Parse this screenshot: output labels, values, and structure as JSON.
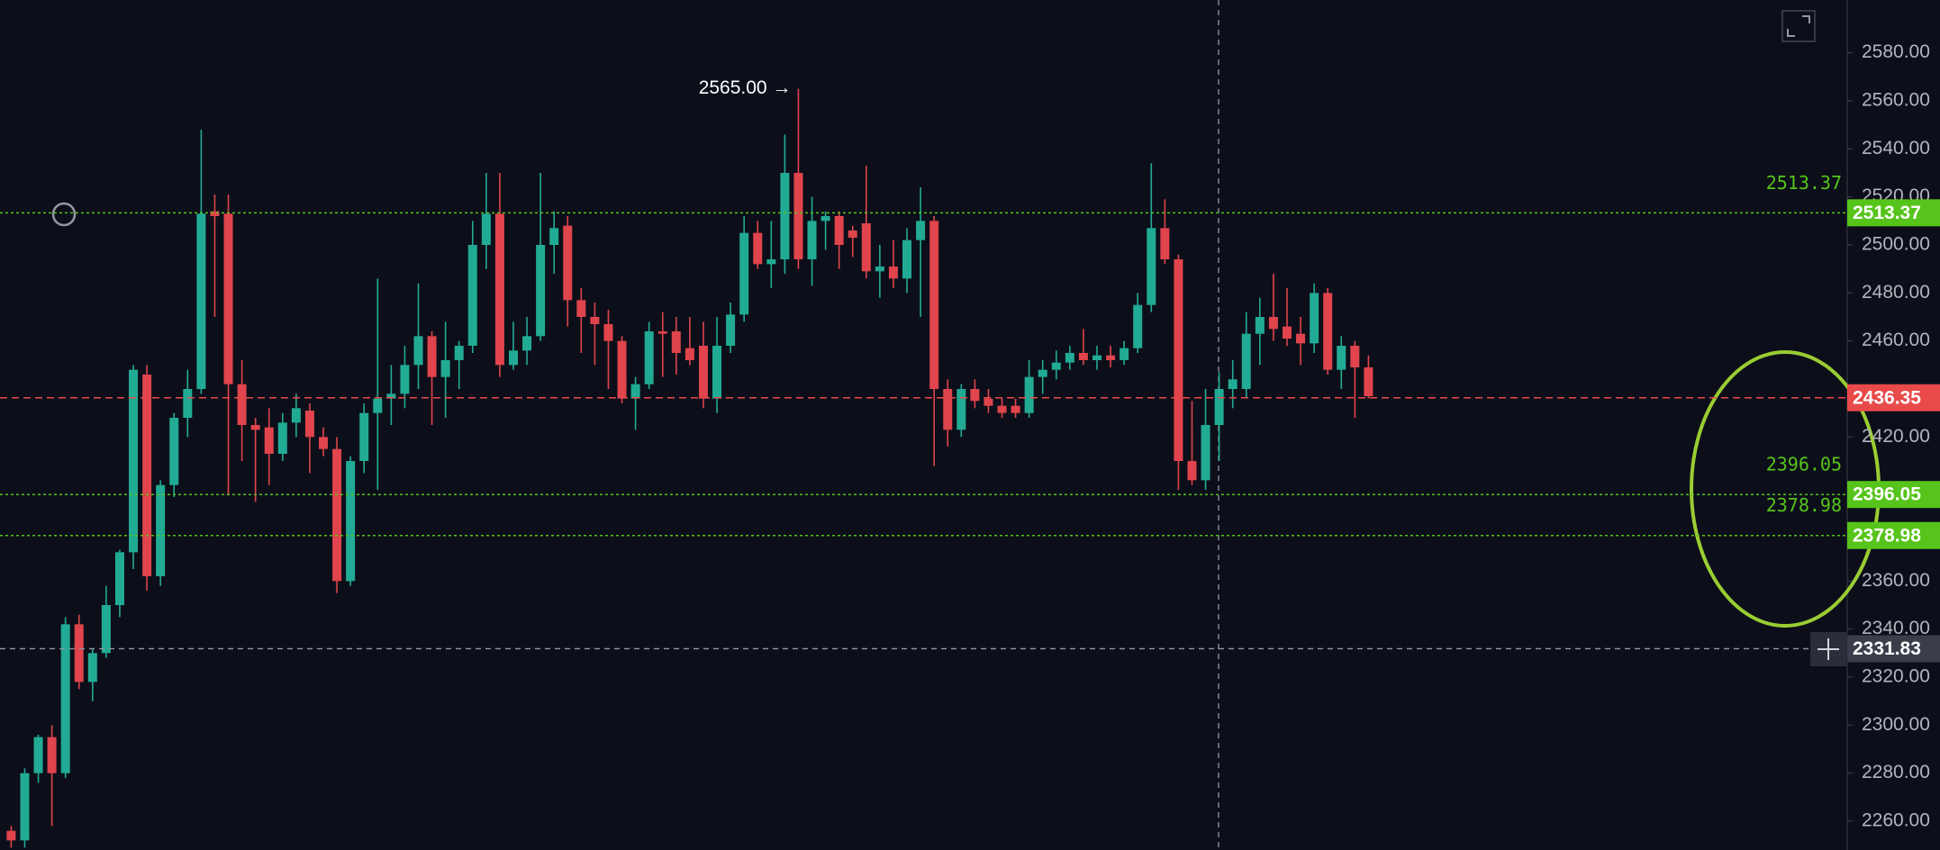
{
  "chart_data": {
    "type": "candlestick",
    "colors": {
      "up": "#22ab94",
      "down": "#e0444c"
    },
    "open": [
      2256,
      2252,
      2280,
      2295,
      2280,
      2342,
      2318,
      2330,
      2350,
      2372,
      2446,
      2362,
      2400,
      2428,
      2440,
      2514,
      2513,
      2442,
      2425,
      2424,
      2413,
      2426,
      2431,
      2420,
      2415,
      2360,
      2410,
      2430,
      2436,
      2438,
      2450,
      2462,
      2445,
      2452,
      2458,
      2500,
      2513,
      2450,
      2456,
      2462,
      2500,
      2508,
      2477,
      2470,
      2467,
      2460,
      2436,
      2442,
      2464,
      2464,
      2457,
      2458,
      2436,
      2458,
      2471,
      2505,
      2492,
      2494,
      2530,
      2494,
      2510,
      2512,
      2506,
      2509,
      2489,
      2491,
      2486,
      2502,
      2510,
      2440,
      2423,
      2440,
      2436,
      2433,
      2433,
      2430,
      2445,
      2448,
      2451,
      2455,
      2452,
      2454,
      2452,
      2457,
      2475,
      2507,
      2494,
      2410,
      2402,
      2425,
      2440,
      2440,
      2463,
      2470,
      2466,
      2463,
      2459,
      2480,
      2448,
      2458,
      2449
    ],
    "high": [
      2258,
      2282,
      2296,
      2300,
      2345,
      2346,
      2332,
      2358,
      2373,
      2450,
      2450,
      2402,
      2430,
      2448,
      2548,
      2521,
      2521,
      2452,
      2428,
      2432,
      2430,
      2438,
      2434,
      2424,
      2420,
      2412,
      2434,
      2486,
      2450,
      2458,
      2484,
      2464,
      2468,
      2460,
      2510,
      2530,
      2530,
      2468,
      2470,
      2530,
      2514,
      2512,
      2482,
      2476,
      2473,
      2462,
      2445,
      2468,
      2472,
      2470,
      2470,
      2468,
      2470,
      2476,
      2512,
      2510,
      2510,
      2546,
      2565,
      2520,
      2514,
      2514,
      2508,
      2533,
      2500,
      2502,
      2507,
      2524,
      2512,
      2444,
      2442,
      2444,
      2440,
      2436,
      2436,
      2452,
      2452,
      2456,
      2458,
      2465,
      2458,
      2458,
      2460,
      2480,
      2534,
      2519,
      2496,
      2435,
      2440,
      2447,
      2452,
      2472,
      2478,
      2488,
      2482,
      2470,
      2484,
      2482,
      2462,
      2460,
      2454
    ],
    "low": [
      2249,
      2249,
      2276,
      2258,
      2278,
      2315,
      2310,
      2328,
      2345,
      2365,
      2356,
      2358,
      2395,
      2420,
      2438,
      2470,
      2396,
      2410,
      2393,
      2400,
      2410,
      2420,
      2405,
      2412,
      2355,
      2358,
      2405,
      2398,
      2425,
      2432,
      2440,
      2425,
      2428,
      2440,
      2455,
      2490,
      2445,
      2448,
      2450,
      2460,
      2488,
      2466,
      2455,
      2450,
      2440,
      2434,
      2423,
      2440,
      2445,
      2446,
      2450,
      2432,
      2430,
      2455,
      2468,
      2490,
      2482,
      2488,
      2490,
      2483,
      2498,
      2490,
      2495,
      2486,
      2478,
      2482,
      2480,
      2470,
      2408,
      2416,
      2420,
      2432,
      2430,
      2428,
      2428,
      2428,
      2438,
      2444,
      2448,
      2450,
      2448,
      2449,
      2450,
      2455,
      2472,
      2492,
      2398,
      2400,
      2398,
      2410,
      2432,
      2436,
      2450,
      2460,
      2458,
      2450,
      2455,
      2446,
      2440,
      2428,
      2436
    ],
    "close": [
      2252,
      2280,
      2295,
      2280,
      2342,
      2318,
      2330,
      2350,
      2372,
      2448,
      2362,
      2400,
      2428,
      2440,
      2513,
      2512,
      2442,
      2425,
      2423,
      2413,
      2426,
      2432,
      2420,
      2415,
      2360,
      2410,
      2430,
      2436,
      2438,
      2450,
      2462,
      2445,
      2452,
      2458,
      2500,
      2513,
      2450,
      2456,
      2462,
      2500,
      2507,
      2477,
      2470,
      2467,
      2460,
      2436,
      2442,
      2464,
      2463,
      2455,
      2452,
      2436,
      2458,
      2471,
      2505,
      2492,
      2494,
      2530,
      2494,
      2510,
      2512,
      2500,
      2503,
      2489,
      2491,
      2486,
      2502,
      2510,
      2440,
      2423,
      2440,
      2435,
      2433,
      2430,
      2430,
      2445,
      2448,
      2451,
      2455,
      2452,
      2454,
      2452,
      2457,
      2475,
      2507,
      2494,
      2410,
      2402,
      2425,
      2440,
      2444,
      2463,
      2470,
      2465,
      2461,
      2459,
      2480,
      2448,
      2458,
      2449,
      2437
    ],
    "ylim": [
      2248,
      2602
    ],
    "yticks": [
      {
        "value": 2260,
        "label": "2260.00"
      },
      {
        "value": 2280,
        "label": "2280.00"
      },
      {
        "value": 2300,
        "label": "2300.00"
      },
      {
        "value": 2320,
        "label": "2320.00"
      },
      {
        "value": 2340,
        "label": "2340.00"
      },
      {
        "value": 2360,
        "label": "2360.00"
      },
      {
        "value": 2420,
        "label": "2420.00"
      },
      {
        "value": 2460,
        "label": "2460.00"
      },
      {
        "value": 2480,
        "label": "2480.00"
      },
      {
        "value": 2500,
        "label": "2500.00"
      },
      {
        "value": 2520,
        "label": "2520.00"
      },
      {
        "value": 2540,
        "label": "2540.00"
      },
      {
        "value": 2560,
        "label": "2560.00"
      },
      {
        "value": 2580,
        "label": "2580.00"
      }
    ],
    "levels": [
      {
        "value": 2513.37,
        "color": "#56c41a"
      },
      {
        "value": 2396.05,
        "color": "#56c41a"
      },
      {
        "value": 2378.98,
        "color": "#56c41a"
      }
    ],
    "last_price": {
      "value": 2436.35,
      "color": "#e84a4a"
    },
    "crosshair_price": {
      "value": 2331.83,
      "color": "#3a3e4a"
    },
    "max_label": {
      "value": 2565,
      "label": "2565.00 →"
    }
  }
}
